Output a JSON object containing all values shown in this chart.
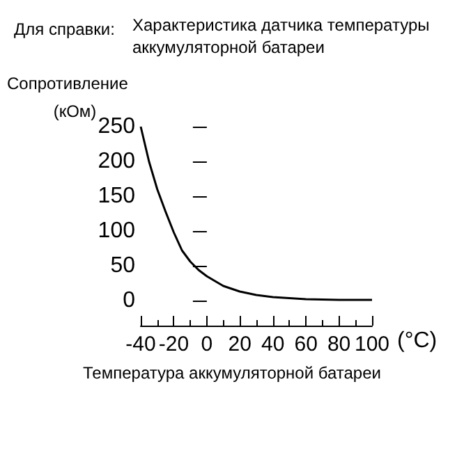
{
  "chart_data": {
    "type": "line",
    "title": "Для справки:",
    "subtitle": "Характеристика датчика температуры аккумуляторной батареи",
    "ylabel": "Сопротивление (кОм)",
    "xlabel": "Температура аккумуляторной батареи",
    "annotations": [
      "(°C)"
    ],
    "x": [
      -40,
      -35,
      -30,
      -25,
      -20,
      -15,
      -10,
      -5,
      0,
      10,
      20,
      30,
      40,
      60,
      80,
      100
    ],
    "series": [
      {
        "color": "#000000",
        "values": [
          250,
          200,
          160,
          128,
          98,
          72,
          56,
          44,
          35,
          21,
          13,
          8,
          5,
          2,
          1,
          1
        ]
      }
    ],
    "xlim": [
      -40,
      100
    ],
    "xticks": [
      -40,
      -20,
      0,
      20,
      40,
      60,
      80,
      100
    ],
    "ylim": [
      0,
      250
    ],
    "yticks": [
      0,
      50,
      100,
      150,
      200,
      250
    ],
    "grid": false,
    "marker": "none",
    "line_style": "solid"
  }
}
